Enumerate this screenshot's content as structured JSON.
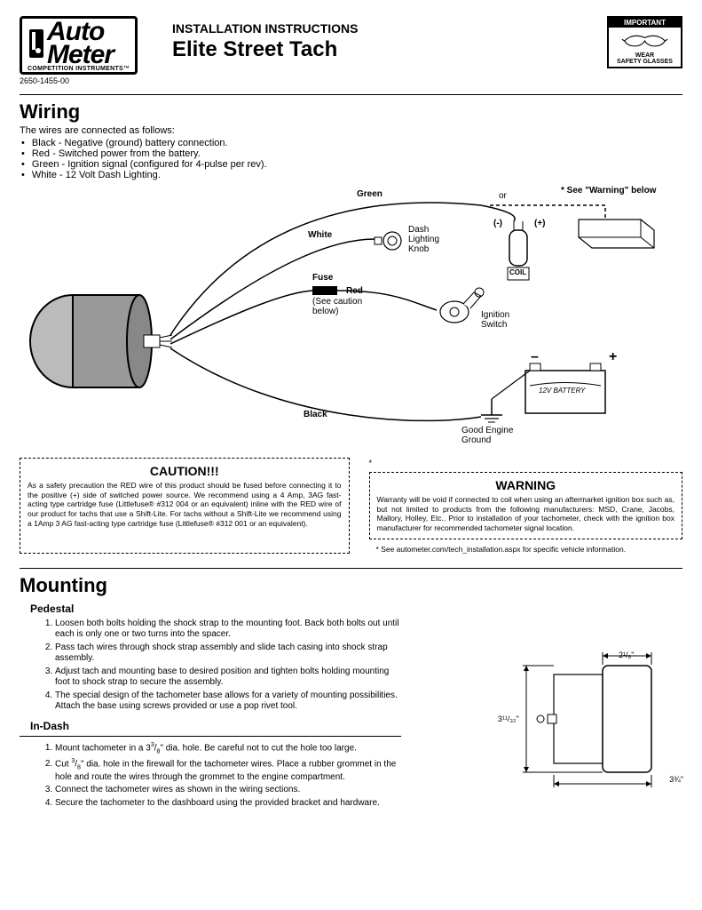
{
  "header": {
    "logo_top": "Auto",
    "logo_bottom": "Meter",
    "logo_tag": "COMPETITION INSTRUMENTS™",
    "part_no": "2650-1455-00",
    "instructions_label": "INSTALLATION INSTRUCTIONS",
    "title": "Elite Street Tach",
    "safety_top": "IMPORTANT",
    "safety_line1": "WEAR",
    "safety_line2": "SAFETY GLASSES"
  },
  "wiring": {
    "heading": "Wiring",
    "intro": "The wires are connected as follows:",
    "bullets": [
      "Black - Negative (ground) battery connection.",
      "Red - Switched power from the battery.",
      "Green - Ignition signal (configured for 4-pulse per rev).",
      "White - 12 Volt Dash Lighting."
    ],
    "labels": {
      "green": "Green",
      "or": "or",
      "see_warning": "* See \"Warning\" below",
      "white": "White",
      "dash_knob": "Dash Lighting Knob",
      "minus": "(-)",
      "plus": "(+)",
      "coil": "COIL",
      "fuse": "Fuse",
      "red": "Red",
      "see_caution": "(See caution below)",
      "ign_switch": "Ignition Switch",
      "black": "Black",
      "battery_minus": "–",
      "battery_plus": "+",
      "battery": "12V BATTERY",
      "good_ground": "Good Engine Ground"
    }
  },
  "caution": {
    "title": "CAUTION!!!",
    "text": "As a safety precaution the RED wire of this product should be fused before connecting it to the positive (+) side of switched power source. We recommend using a 4 Amp, 3AG fast-acting type cartridge fuse (Littlefuse® #312 004 or an equivalent) inline with the RED wire of our product for tachs that use a Shift-Lite. For tachs without a Shift-Lite we recommend using a 1Amp 3 AG fast-acting type cartridge fuse (Littlefuse® #312 001 or an equivalent)."
  },
  "warning": {
    "star": "*",
    "title": "WARNING",
    "text": "Warranty will be void if connected to coil when using an aftermarket ignition box such as, but not limited to products from the following manufacturers: MSD, Crane, Jacobs, Mallory, Holley, Etc.. Prior to installation of your tachometer, check with the ignition box manufacturer for recommended tachometer signal location.",
    "footnote": "* See autometer.com/tech_installation.aspx for specific vehicle information."
  },
  "mounting": {
    "heading": "Mounting",
    "pedestal_title": "Pedestal",
    "pedestal_steps": [
      "Loosen both bolts holding the shock strap to the mounting foot. Back both bolts out until each is only one or two turns into the spacer.",
      "Pass tach wires through shock strap assembly and slide tach casing into shock strap assembly.",
      "Adjust tach and mounting base to desired position and tighten bolts holding mounting foot to shock strap to secure the assembly.",
      "The special design of the tachometer base allows for a variety of mounting possibilities. Attach the base using screws provided or use a pop rivet tool."
    ],
    "indash_title": "In-Dash",
    "indash_steps_html": [
      "Mount tachometer in a 3<sup>3</sup>/<sub>8</sub>\" dia. hole. Be careful not to cut the hole too large.",
      "Cut <sup>3</sup>/<sub>8</sub>\" dia. hole in the firewall for the tachometer wires. Place a rubber grommet in the hole and route the wires through the grommet to the engine compartment.",
      "Connect the tachometer wires as shown in the wiring sections.",
      "Secure the tachometer to the dashboard using the provided bracket and hardware."
    ],
    "dims": {
      "width_top": "2¹/₈\"",
      "height": "3¹¹/₃₂\"",
      "depth": "3¾\""
    }
  }
}
